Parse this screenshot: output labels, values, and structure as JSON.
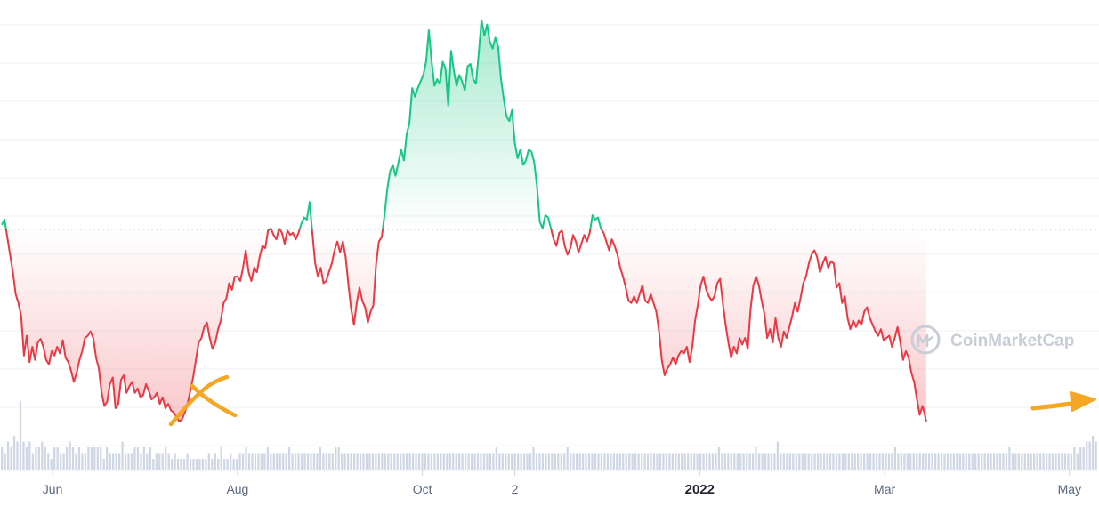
{
  "watermark": {
    "text": "CoinMarketCap"
  },
  "colors": {
    "up": "#16c784",
    "down": "#ea3943",
    "volume": "#cfd6e4",
    "grid": "#eff2f5",
    "baseline": "#8f97a5",
    "annotation": "#f5a623"
  },
  "chart_data": {
    "type": "area",
    "x_axis_labels": [
      {
        "label": "Jun",
        "x": 0.0
      },
      {
        "label": "Aug",
        "x": 2.0
      },
      {
        "label": "Oct",
        "x": 4.0
      },
      {
        "label": "2",
        "x": 5.0
      },
      {
        "label": "2022",
        "x": 7.0,
        "emphasis": "bold"
      },
      {
        "label": "Mar",
        "x": 9.0
      },
      {
        "label": "May",
        "x": 11.0
      }
    ],
    "x_range": [
      -0.55,
      11.3
    ],
    "y_range": [
      0,
      100
    ],
    "baseline": 54.8,
    "price_series": [
      [
        -0.55,
        55.8
      ],
      [
        -0.52,
        57
      ],
      [
        -0.49,
        53
      ],
      [
        -0.46,
        49
      ],
      [
        -0.43,
        45
      ],
      [
        -0.4,
        40
      ],
      [
        -0.37,
        38
      ],
      [
        -0.34,
        35
      ],
      [
        -0.31,
        26
      ],
      [
        -0.28,
        30.5
      ],
      [
        -0.25,
        24.5
      ],
      [
        -0.22,
        28
      ],
      [
        -0.19,
        25
      ],
      [
        -0.16,
        29
      ],
      [
        -0.13,
        29.8
      ],
      [
        -0.1,
        28
      ],
      [
        -0.07,
        25
      ],
      [
        -0.04,
        24
      ],
      [
        -0.01,
        27
      ],
      [
        0.02,
        26
      ],
      [
        0.05,
        28
      ],
      [
        0.08,
        26.5
      ],
      [
        0.11,
        29.5
      ],
      [
        0.14,
        25.5
      ],
      [
        0.17,
        24.5
      ],
      [
        0.2,
        22.5
      ],
      [
        0.23,
        20
      ],
      [
        0.26,
        22
      ],
      [
        0.29,
        25
      ],
      [
        0.32,
        27
      ],
      [
        0.35,
        30
      ],
      [
        0.38,
        30.5
      ],
      [
        0.41,
        31.5
      ],
      [
        0.44,
        30
      ],
      [
        0.47,
        25.5
      ],
      [
        0.5,
        23
      ],
      [
        0.53,
        17.5
      ],
      [
        0.56,
        14.5
      ],
      [
        0.59,
        15.5
      ],
      [
        0.62,
        19.5
      ],
      [
        0.65,
        21
      ],
      [
        0.68,
        14
      ],
      [
        0.71,
        15
      ],
      [
        0.74,
        20.5
      ],
      [
        0.77,
        21.5
      ],
      [
        0.8,
        17.5
      ],
      [
        0.83,
        19
      ],
      [
        0.86,
        20
      ],
      [
        0.89,
        17.5
      ],
      [
        0.92,
        18.5
      ],
      [
        0.95,
        16.5
      ],
      [
        0.98,
        17
      ],
      [
        1.01,
        19.5
      ],
      [
        1.04,
        18
      ],
      [
        1.07,
        16
      ],
      [
        1.1,
        16.5
      ],
      [
        1.13,
        17.5
      ],
      [
        1.16,
        15
      ],
      [
        1.19,
        16.5
      ],
      [
        1.22,
        14
      ],
      [
        1.25,
        15
      ],
      [
        1.28,
        13.5
      ],
      [
        1.31,
        13
      ],
      [
        1.34,
        12
      ],
      [
        1.37,
        11
      ],
      [
        1.4,
        11.5
      ],
      [
        1.43,
        13
      ],
      [
        1.46,
        15
      ],
      [
        1.49,
        18
      ],
      [
        1.52,
        21
      ],
      [
        1.55,
        25
      ],
      [
        1.58,
        29
      ],
      [
        1.61,
        30
      ],
      [
        1.64,
        32.5
      ],
      [
        1.67,
        33.5
      ],
      [
        1.7,
        30
      ],
      [
        1.73,
        27.5
      ],
      [
        1.76,
        29
      ],
      [
        1.79,
        32
      ],
      [
        1.82,
        34
      ],
      [
        1.85,
        38
      ],
      [
        1.88,
        39
      ],
      [
        1.91,
        42.5
      ],
      [
        1.94,
        41
      ],
      [
        1.97,
        44
      ],
      [
        2.0,
        44
      ],
      [
        2.03,
        43
      ],
      [
        2.06,
        46
      ],
      [
        2.09,
        50
      ],
      [
        2.12,
        45
      ],
      [
        2.15,
        43
      ],
      [
        2.18,
        46
      ],
      [
        2.21,
        45
      ],
      [
        2.24,
        48.5
      ],
      [
        2.27,
        51
      ],
      [
        2.3,
        50.5
      ],
      [
        2.33,
        54.5
      ],
      [
        2.36,
        55
      ],
      [
        2.39,
        53.5
      ],
      [
        2.42,
        52.5
      ],
      [
        2.45,
        55
      ],
      [
        2.48,
        54
      ],
      [
        2.51,
        51.5
      ],
      [
        2.54,
        54.5
      ],
      [
        2.57,
        53.5
      ],
      [
        2.6,
        54
      ],
      [
        2.63,
        52.5
      ],
      [
        2.66,
        54
      ],
      [
        2.69,
        56
      ],
      [
        2.72,
        57.5
      ],
      [
        2.75,
        57
      ],
      [
        2.78,
        61
      ],
      [
        2.81,
        54
      ],
      [
        2.84,
        47
      ],
      [
        2.87,
        44
      ],
      [
        2.9,
        46
      ],
      [
        2.93,
        42.5
      ],
      [
        2.96,
        43
      ],
      [
        2.99,
        45
      ],
      [
        3.02,
        47
      ],
      [
        3.05,
        50
      ],
      [
        3.08,
        52
      ],
      [
        3.11,
        49.5
      ],
      [
        3.14,
        52
      ],
      [
        3.17,
        48.5
      ],
      [
        3.2,
        42
      ],
      [
        3.23,
        36.5
      ],
      [
        3.26,
        33
      ],
      [
        3.29,
        38
      ],
      [
        3.32,
        41.5
      ],
      [
        3.35,
        38.5
      ],
      [
        3.38,
        37
      ],
      [
        3.41,
        33.5
      ],
      [
        3.44,
        36
      ],
      [
        3.47,
        37.5
      ],
      [
        3.5,
        47
      ],
      [
        3.53,
        52
      ],
      [
        3.56,
        53
      ],
      [
        3.59,
        58
      ],
      [
        3.62,
        64
      ],
      [
        3.65,
        68
      ],
      [
        3.68,
        69.5
      ],
      [
        3.71,
        67
      ],
      [
        3.74,
        70
      ],
      [
        3.77,
        73
      ],
      [
        3.8,
        70.5
      ],
      [
        3.83,
        76.5
      ],
      [
        3.86,
        79
      ],
      [
        3.89,
        87
      ],
      [
        3.92,
        85
      ],
      [
        3.95,
        87
      ],
      [
        3.98,
        88.5
      ],
      [
        4.01,
        90
      ],
      [
        4.04,
        93
      ],
      [
        4.07,
        100.2
      ],
      [
        4.1,
        93
      ],
      [
        4.13,
        87.5
      ],
      [
        4.16,
        89
      ],
      [
        4.19,
        88
      ],
      [
        4.22,
        93
      ],
      [
        4.25,
        91.5
      ],
      [
        4.28,
        83
      ],
      [
        4.31,
        95.5
      ],
      [
        4.34,
        91
      ],
      [
        4.37,
        87.5
      ],
      [
        4.4,
        90
      ],
      [
        4.43,
        88.5
      ],
      [
        4.46,
        86.5
      ],
      [
        4.49,
        92
      ],
      [
        4.52,
        92.5
      ],
      [
        4.55,
        89
      ],
      [
        4.58,
        88
      ],
      [
        4.61,
        95
      ],
      [
        4.64,
        102.5
      ],
      [
        4.67,
        99
      ],
      [
        4.7,
        101.5
      ],
      [
        4.73,
        97.5
      ],
      [
        4.76,
        96
      ],
      [
        4.79,
        98.5
      ],
      [
        4.82,
        96.5
      ],
      [
        4.85,
        89
      ],
      [
        4.88,
        84.5
      ],
      [
        4.91,
        80.5
      ],
      [
        4.94,
        79.5
      ],
      [
        4.97,
        82
      ],
      [
        5.0,
        74.5
      ],
      [
        5.03,
        71
      ],
      [
        5.06,
        73
      ],
      [
        5.09,
        69.5
      ],
      [
        5.12,
        70.5
      ],
      [
        5.15,
        73
      ],
      [
        5.18,
        72.5
      ],
      [
        5.21,
        70
      ],
      [
        5.24,
        64.5
      ],
      [
        5.27,
        56.5
      ],
      [
        5.3,
        55
      ],
      [
        5.33,
        58
      ],
      [
        5.36,
        57.5
      ],
      [
        5.39,
        55
      ],
      [
        5.42,
        52.5
      ],
      [
        5.45,
        51
      ],
      [
        5.48,
        54
      ],
      [
        5.51,
        54.5
      ],
      [
        5.54,
        51
      ],
      [
        5.57,
        49
      ],
      [
        5.6,
        50.5
      ],
      [
        5.63,
        53.5
      ],
      [
        5.66,
        52
      ],
      [
        5.69,
        49.5
      ],
      [
        5.72,
        51.5
      ],
      [
        5.75,
        53.5
      ],
      [
        5.78,
        52
      ],
      [
        5.81,
        54
      ],
      [
        5.84,
        58
      ],
      [
        5.87,
        57
      ],
      [
        5.9,
        57.5
      ],
      [
        5.93,
        55
      ],
      [
        5.96,
        54
      ],
      [
        5.99,
        52
      ],
      [
        6.02,
        50
      ],
      [
        6.05,
        52.5
      ],
      [
        6.08,
        51
      ],
      [
        6.11,
        49
      ],
      [
        6.14,
        46
      ],
      [
        6.17,
        44
      ],
      [
        6.2,
        41.5
      ],
      [
        6.23,
        38.5
      ],
      [
        6.26,
        38
      ],
      [
        6.29,
        39.5
      ],
      [
        6.32,
        38
      ],
      [
        6.35,
        40
      ],
      [
        6.38,
        42
      ],
      [
        6.41,
        38.5
      ],
      [
        6.44,
        38
      ],
      [
        6.47,
        40
      ],
      [
        6.5,
        38
      ],
      [
        6.53,
        36
      ],
      [
        6.56,
        31.5
      ],
      [
        6.59,
        25
      ],
      [
        6.62,
        21.5
      ],
      [
        6.65,
        23
      ],
      [
        6.68,
        24
      ],
      [
        6.71,
        25.5
      ],
      [
        6.74,
        24
      ],
      [
        6.77,
        26
      ],
      [
        6.8,
        27
      ],
      [
        6.83,
        26.5
      ],
      [
        6.86,
        28
      ],
      [
        6.89,
        24.5
      ],
      [
        6.92,
        28
      ],
      [
        6.95,
        34
      ],
      [
        6.98,
        37.5
      ],
      [
        7.01,
        42
      ],
      [
        7.04,
        44
      ],
      [
        7.07,
        41
      ],
      [
        7.1,
        39.5
      ],
      [
        7.13,
        38.5
      ],
      [
        7.16,
        39.5
      ],
      [
        7.19,
        42.5
      ],
      [
        7.22,
        43.5
      ],
      [
        7.25,
        38
      ],
      [
        7.28,
        33
      ],
      [
        7.31,
        29
      ],
      [
        7.34,
        25.5
      ],
      [
        7.37,
        28
      ],
      [
        7.4,
        26.5
      ],
      [
        7.43,
        30
      ],
      [
        7.46,
        28.5
      ],
      [
        7.49,
        30
      ],
      [
        7.52,
        27.5
      ],
      [
        7.55,
        36.5
      ],
      [
        7.58,
        42
      ],
      [
        7.61,
        44
      ],
      [
        7.64,
        42
      ],
      [
        7.67,
        38.5
      ],
      [
        7.7,
        35.5
      ],
      [
        7.73,
        30
      ],
      [
        7.76,
        32
      ],
      [
        7.79,
        29
      ],
      [
        7.82,
        34.5
      ],
      [
        7.85,
        30
      ],
      [
        7.88,
        28
      ],
      [
        7.91,
        31.5
      ],
      [
        7.94,
        30
      ],
      [
        7.97,
        32.5
      ],
      [
        8.0,
        35
      ],
      [
        8.03,
        38
      ],
      [
        8.06,
        36
      ],
      [
        8.09,
        39
      ],
      [
        8.12,
        42.5
      ],
      [
        8.15,
        44
      ],
      [
        8.18,
        47
      ],
      [
        8.21,
        49
      ],
      [
        8.24,
        50
      ],
      [
        8.27,
        48.5
      ],
      [
        8.3,
        45
      ],
      [
        8.33,
        47
      ],
      [
        8.36,
        48.5
      ],
      [
        8.39,
        46
      ],
      [
        8.42,
        47.5
      ],
      [
        8.45,
        47
      ],
      [
        8.48,
        41.5
      ],
      [
        8.51,
        42.5
      ],
      [
        8.54,
        38
      ],
      [
        8.57,
        39.5
      ],
      [
        8.6,
        34.5
      ],
      [
        8.63,
        32
      ],
      [
        8.66,
        34
      ],
      [
        8.69,
        32.5
      ],
      [
        8.72,
        34
      ],
      [
        8.75,
        33
      ],
      [
        8.78,
        36
      ],
      [
        8.81,
        37
      ],
      [
        8.84,
        34.5
      ],
      [
        8.87,
        33
      ],
      [
        8.9,
        31.5
      ],
      [
        8.93,
        30.5
      ],
      [
        8.96,
        32
      ],
      [
        8.99,
        29.5
      ],
      [
        9.02,
        30
      ],
      [
        9.05,
        30.5
      ],
      [
        9.08,
        28
      ],
      [
        9.11,
        30
      ],
      [
        9.14,
        32.5
      ],
      [
        9.17,
        29
      ],
      [
        9.2,
        25
      ],
      [
        9.23,
        27
      ],
      [
        9.26,
        25.5
      ],
      [
        9.29,
        22
      ],
      [
        9.32,
        20
      ],
      [
        9.35,
        16
      ],
      [
        9.38,
        12.5
      ],
      [
        9.41,
        14.5
      ],
      [
        9.43,
        13
      ],
      [
        9.45,
        11
      ]
    ],
    "volume_series": [
      4,
      3,
      5,
      4,
      6,
      5,
      12,
      5,
      4,
      5,
      3,
      4,
      4,
      5,
      4,
      3,
      2,
      4,
      4,
      3,
      3,
      4,
      5,
      4,
      3,
      4,
      3,
      3,
      4,
      4,
      4,
      4,
      4,
      2,
      4,
      3,
      3,
      3,
      3,
      5,
      3,
      3,
      3,
      4,
      4,
      3,
      4,
      3,
      4,
      2,
      3,
      3,
      3,
      4,
      3,
      2,
      3,
      2,
      2,
      2,
      3,
      2,
      2,
      2,
      2,
      2,
      2,
      3,
      2,
      3,
      2,
      4,
      2,
      2,
      3,
      2,
      2,
      3,
      3,
      4,
      3,
      3,
      3,
      3,
      3,
      3,
      4,
      3,
      3,
      3,
      3,
      3,
      3,
      4,
      3,
      3,
      3,
      3,
      3,
      3,
      3,
      3,
      3,
      4,
      3,
      3,
      3,
      3,
      4,
      4,
      3,
      3,
      3,
      3,
      3,
      3,
      3,
      3,
      3,
      3,
      3,
      3,
      3,
      3,
      3,
      3,
      3,
      3,
      3,
      3,
      3,
      3,
      3,
      3,
      3,
      3,
      3,
      3,
      3,
      3,
      3,
      3,
      3,
      3,
      3,
      3,
      3,
      3,
      3,
      3,
      3,
      3,
      3,
      3,
      3,
      3,
      3,
      3,
      3,
      3,
      4,
      3,
      3,
      3,
      3,
      3,
      3,
      3,
      3,
      3,
      3,
      3,
      4,
      3,
      3,
      3,
      3,
      3,
      3,
      3,
      3,
      3,
      3,
      4,
      3,
      3,
      3,
      3,
      3,
      3,
      3,
      3,
      3,
      3,
      3,
      3,
      3,
      3,
      3,
      3,
      3,
      3,
      3,
      3,
      3,
      3,
      3,
      3,
      3,
      3,
      3,
      3,
      3,
      3,
      3,
      3,
      3,
      3,
      3,
      3,
      3,
      3,
      3,
      3,
      3,
      3,
      3,
      3,
      3,
      3,
      3,
      3,
      4,
      3,
      3,
      3,
      3,
      3,
      3,
      3,
      3,
      3,
      3,
      3,
      4,
      3,
      3,
      3,
      3,
      3,
      3,
      5,
      3,
      3,
      3,
      3,
      3,
      3,
      3,
      3,
      3,
      3,
      3,
      3,
      3,
      3,
      3,
      3,
      3,
      3,
      3,
      3,
      3,
      3,
      3,
      3,
      3,
      3,
      3,
      3,
      3,
      3,
      3,
      3,
      3,
      3,
      3,
      3,
      3,
      4,
      3,
      3,
      3,
      3,
      3,
      3,
      3,
      3,
      3,
      3,
      3,
      3,
      3,
      3,
      3,
      3,
      3,
      3,
      3,
      3,
      3,
      3,
      3,
      3,
      3,
      3,
      3,
      3,
      3,
      3,
      3,
      3,
      3,
      3,
      3,
      3,
      4,
      3,
      3,
      3,
      3,
      3,
      3,
      3,
      3,
      3,
      3,
      3,
      3,
      3,
      3,
      3,
      3,
      3,
      3,
      3,
      3,
      4,
      3,
      4,
      4,
      5,
      5,
      6,
      5
    ]
  }
}
